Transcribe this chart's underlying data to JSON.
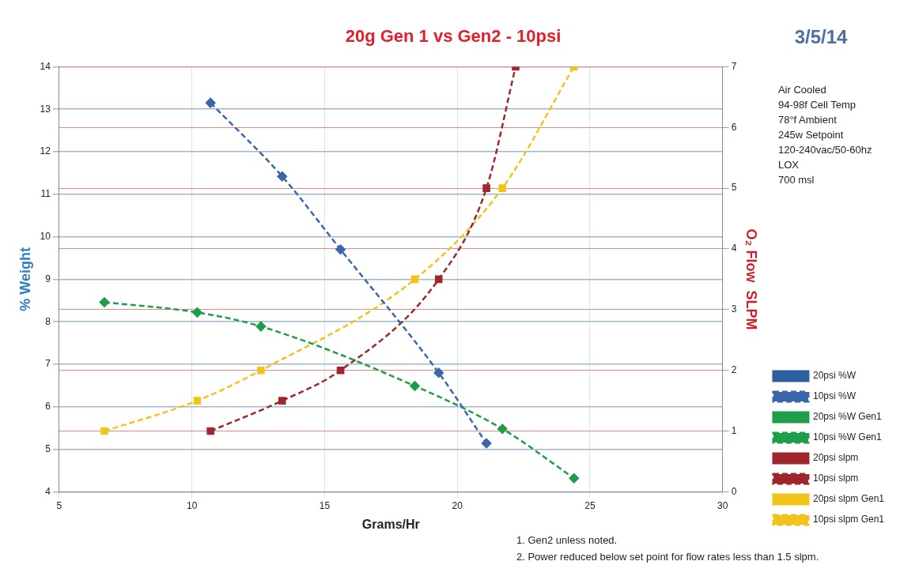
{
  "chart_data": {
    "type": "line",
    "title": "20g Gen 1 vs Gen2 - 10psi",
    "xlabel": "Grams/Hr",
    "ylabel": "% Weight",
    "y2label": "O₂ Flow  SLPM",
    "xlim": [
      5,
      30
    ],
    "xticks": [
      5,
      10,
      15,
      20,
      25,
      30
    ],
    "ylim": [
      4,
      14
    ],
    "yticks": [
      4,
      5,
      6,
      7,
      8,
      9,
      10,
      11,
      12,
      13,
      14
    ],
    "y2lim": [
      0,
      7
    ],
    "y2ticks": [
      0,
      1,
      2,
      3,
      4,
      5,
      6,
      7
    ],
    "grid": true,
    "legend": "right",
    "line_style": "dashed",
    "series": [
      {
        "name": "20psi %W",
        "color": "#2e5f9e",
        "marker": "diamond",
        "line_style": "solid"
      },
      {
        "name": "10psi %W",
        "color": "#3a67a8",
        "x": [
          10.7,
          13.4,
          15.6,
          19.3,
          21.1
        ],
        "values": [
          13.15,
          11.42,
          9.7,
          6.8,
          5.14
        ],
        "marker": "diamond"
      },
      {
        "name": "20psi %W Gen1",
        "color": "#1f9e4a",
        "marker": "diamond",
        "line_style": "solid"
      },
      {
        "name": "10psi %W Gen1",
        "color": "#1f9e4a",
        "x": [
          6.7,
          10.2,
          12.6,
          18.4,
          21.7,
          24.4
        ],
        "values": [
          8.46,
          8.22,
          7.89,
          6.49,
          5.48,
          4.32
        ],
        "marker": "diamond"
      },
      {
        "name": "20psi slpm",
        "color": "#a0262e",
        "marker": "square",
        "line_style": "solid",
        "axis": "y2"
      },
      {
        "name": "10psi slpm",
        "color": "#a0262e",
        "x": [
          10.7,
          13.4,
          15.6,
          19.3,
          21.1,
          22.2
        ],
        "values": [
          1,
          1.5,
          2,
          3.5,
          5,
          7
        ],
        "marker": "square",
        "axis": "y2"
      },
      {
        "name": "20psi slpm Gen1",
        "color": "#f2c318",
        "marker": "circle",
        "line_style": "solid",
        "axis": "y2"
      },
      {
        "name": "10psi slpm Gen1",
        "color": "#f2c318",
        "x": [
          6.7,
          10.2,
          12.6,
          18.4,
          21.7,
          24.4
        ],
        "values": [
          1,
          1.5,
          2,
          3.5,
          5,
          7
        ],
        "marker": "square",
        "axis": "y2"
      }
    ],
    "annotations": [
      "3/5/14",
      "Air Cooled",
      "94-98f Cell Temp",
      "78°f Ambient",
      "245w Setpoint",
      "120-240vac/50-60hz",
      "LOX",
      "700 msl",
      "1. Gen2 unless noted.",
      "2. Power reduced below set point for flow rates less than 1.5 slpm."
    ]
  }
}
